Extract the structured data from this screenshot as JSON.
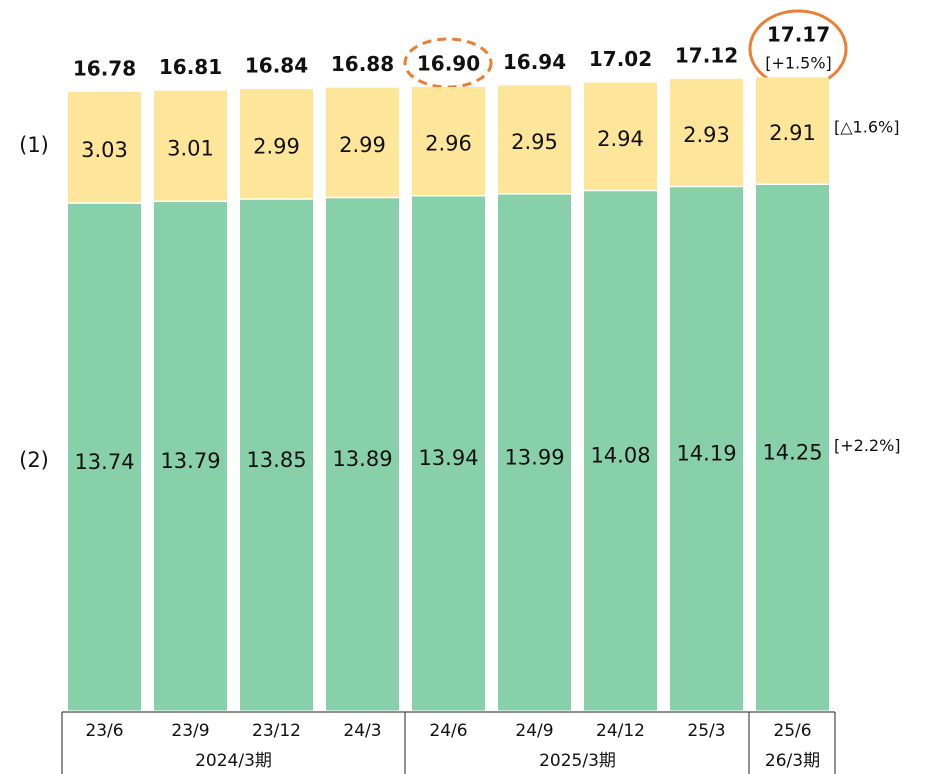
{
  "chart_data": {
    "type": "stacked_bar",
    "categories": [
      "23/6",
      "23/9",
      "23/12",
      "24/3",
      "24/6",
      "24/9",
      "24/12",
      "25/3",
      "25/6"
    ],
    "groups": [
      {
        "name": "2024/3期",
        "span": 4
      },
      {
        "name": "2025/3期",
        "span": 4
      },
      {
        "name": "26/3期",
        "span": 1
      }
    ],
    "series": [
      {
        "name": "(2)",
        "color": "#88d0aa",
        "values": [
          13.74,
          13.79,
          13.85,
          13.89,
          13.94,
          13.99,
          14.08,
          14.19,
          14.25
        ],
        "change": "[+2.2%]"
      },
      {
        "name": "(1)",
        "color": "#fde59a",
        "values": [
          3.03,
          3.01,
          2.99,
          2.99,
          2.96,
          2.95,
          2.94,
          2.93,
          2.91
        ],
        "change": "[△1.6%]"
      }
    ],
    "totals": [
      16.78,
      16.81,
      16.84,
      16.88,
      16.9,
      16.94,
      17.02,
      17.12,
      17.17
    ],
    "totals_labels": [
      "16.78",
      "16.81",
      "16.84",
      "16.88",
      "16.90",
      "16.94",
      "17.02",
      "17.12",
      "17.17"
    ],
    "total_change": "[+1.5%]"
  }
}
